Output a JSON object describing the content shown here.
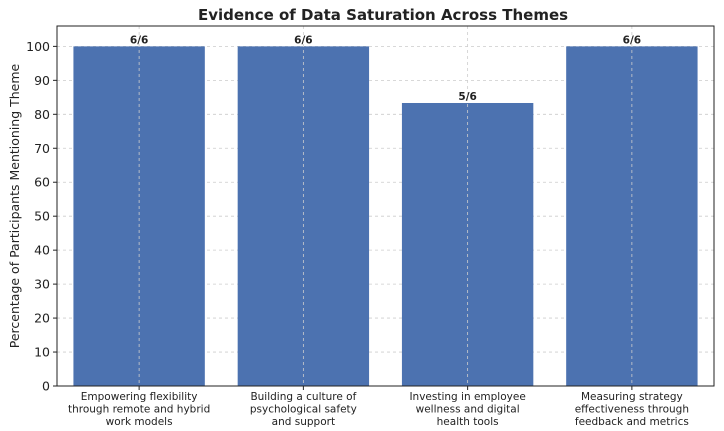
{
  "chart_data": {
    "type": "bar",
    "title": "Evidence of Data Saturation Across Themes",
    "xlabel": "",
    "ylabel": "Percentage of Participants Mentioning Theme",
    "categories": [
      [
        "Empowering flexibility",
        "through remote and hybrid",
        "work models"
      ],
      [
        "Building a culture of",
        "psychological safety",
        "and support"
      ],
      [
        "Investing in employee",
        "wellness and digital",
        "health tools"
      ],
      [
        "Measuring strategy",
        "effectiveness through",
        "feedback and metrics"
      ]
    ],
    "values": [
      100,
      100,
      83.33,
      100
    ],
    "data_labels": [
      "6/6",
      "6/6",
      "5/6",
      "6/6"
    ],
    "ylim": [
      0,
      106
    ],
    "yticks": [
      0,
      10,
      20,
      30,
      40,
      50,
      60,
      70,
      80,
      90,
      100
    ],
    "grid": true,
    "bar_color": "#4c72b0",
    "grid_color": "#cccccc",
    "axis_color": "#222222"
  }
}
